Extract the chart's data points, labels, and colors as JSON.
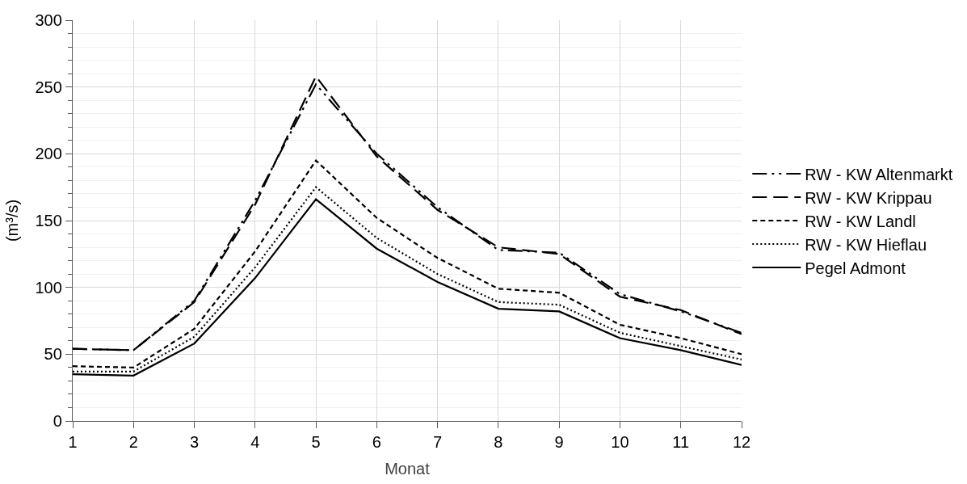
{
  "chart_data": {
    "type": "line",
    "xlabel": "Monat",
    "ylabel": "(m³/s)",
    "x": [
      1,
      2,
      3,
      4,
      5,
      6,
      7,
      8,
      9,
      10,
      11,
      12
    ],
    "series": [
      {
        "name": "RW - KW Altenmarkt",
        "color": "#000000",
        "line_style": "dashdotdot",
        "values": [
          54,
          53,
          90,
          165,
          252,
          200,
          160,
          128,
          126,
          95,
          82,
          66
        ]
      },
      {
        "name": "RW - KW Krippau",
        "color": "#000000",
        "line_style": "longdash",
        "values": [
          54,
          53,
          89,
          162,
          258,
          198,
          158,
          130,
          125,
          93,
          83,
          65
        ]
      },
      {
        "name": "RW - KW Landl",
        "color": "#000000",
        "line_style": "dashed",
        "values": [
          41,
          40,
          69,
          127,
          195,
          152,
          122,
          99,
          96,
          72,
          62,
          50
        ]
      },
      {
        "name": "RW - KW Hieflau",
        "color": "#000000",
        "line_style": "dotted",
        "values": [
          37,
          37,
          63,
          115,
          175,
          137,
          110,
          89,
          87,
          66,
          56,
          46
        ]
      },
      {
        "name": "Pegel Admont",
        "color": "#000000",
        "line_style": "solid",
        "values": [
          35,
          34,
          58,
          107,
          166,
          129,
          104,
          84,
          82,
          62,
          53,
          42
        ]
      }
    ],
    "xlim": [
      1,
      12
    ],
    "xticks": [
      1,
      2,
      3,
      4,
      5,
      6,
      7,
      8,
      9,
      10,
      11,
      12
    ],
    "ylim": [
      0,
      300
    ],
    "yticks": [
      0,
      50,
      100,
      150,
      200,
      250,
      300
    ],
    "grid": true,
    "legend": "right",
    "marker": "none"
  }
}
